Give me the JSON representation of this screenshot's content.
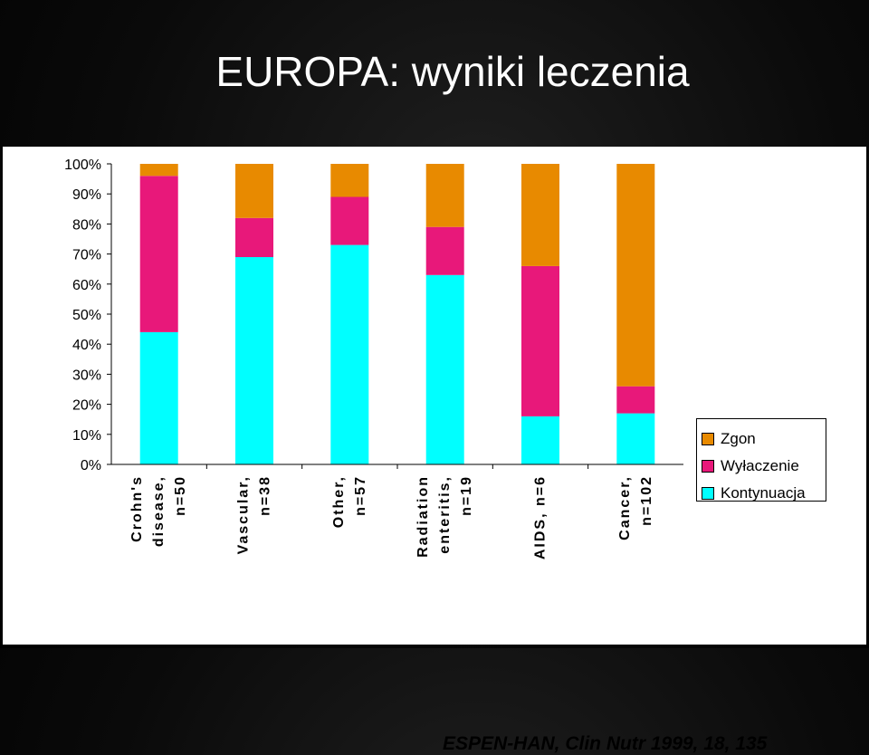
{
  "title": "EUROPA: wyniki leczenia",
  "citation": "ESPEN-HAN, Clin Nutr 1999, 18, 135",
  "colors": {
    "zgon": "#e88a00",
    "wylaczenie": "#e8187a",
    "kontynuacja": "#00ffff"
  },
  "chart_data": {
    "type": "bar",
    "stacked": true,
    "percent": true,
    "title": "EUROPA: wyniki leczenia",
    "categories": [
      "Crohn's disease, n=50",
      "Vascular, n=38",
      "Other, n=57",
      "Radiation enteritis, n=19",
      "AIDS, n=6",
      "Cancer, n=102"
    ],
    "category_lines": [
      [
        "Crohn's",
        "disease,",
        "n=50"
      ],
      [
        "Vascular,",
        "n=38"
      ],
      [
        "Other,",
        "n=57"
      ],
      [
        "Radiation",
        "enteritis,",
        "n=19"
      ],
      [
        "AIDS, n=6"
      ],
      [
        "Cancer,",
        "n=102"
      ]
    ],
    "series": [
      {
        "name": "Kontynuacja",
        "color": "#00ffff",
        "values": [
          44,
          69,
          73,
          63,
          16,
          17
        ]
      },
      {
        "name": "Wyłaczenie",
        "color": "#e8187a",
        "values": [
          52,
          13,
          16,
          16,
          50,
          9
        ]
      },
      {
        "name": "Zgon",
        "color": "#e88a00",
        "values": [
          4,
          18,
          11,
          21,
          34,
          74
        ]
      }
    ],
    "legend": [
      "Zgon",
      "Wyłaczenie",
      "Kontynuacja"
    ],
    "y_ticks": [
      "0%",
      "10%",
      "20%",
      "30%",
      "40%",
      "50%",
      "60%",
      "70%",
      "80%",
      "90%",
      "100%"
    ],
    "ylim": [
      0,
      100
    ],
    "legend_position": "right",
    "grid": false
  }
}
